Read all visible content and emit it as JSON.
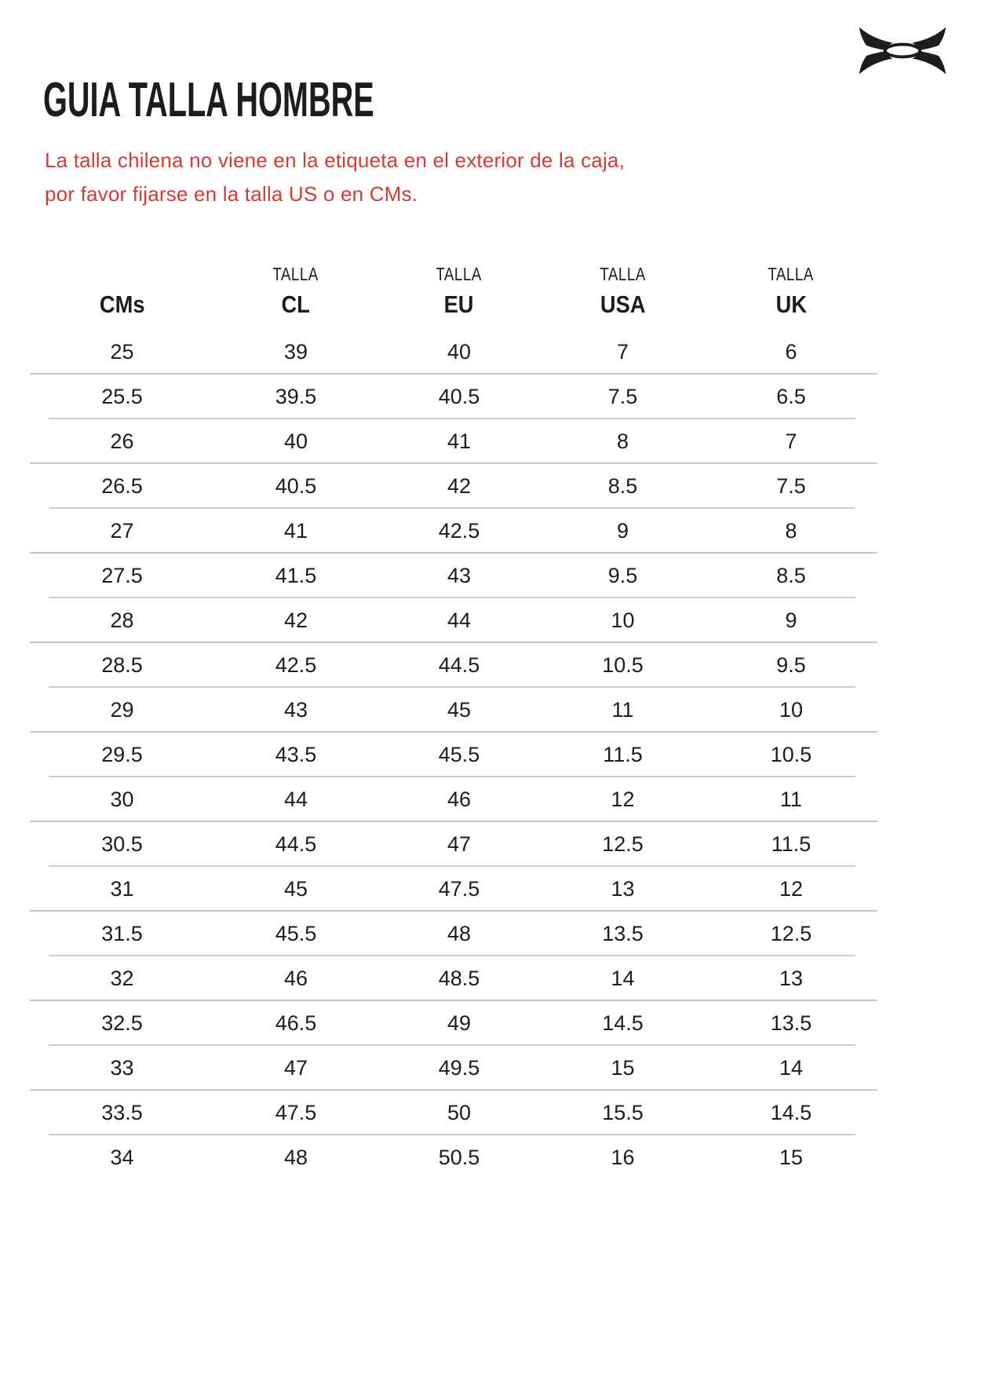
{
  "brand": {
    "logo_icon": "under-armour-logo"
  },
  "page": {
    "title": "GUIA TALLA HOMBRE"
  },
  "note": {
    "line1": "La talla chilena no viene en la etiqueta en el exterior de la caja,",
    "line2": "por favor fijarse en la talla US o en CMs."
  },
  "table": {
    "columns": [
      {
        "talla": "",
        "code": "CMs"
      },
      {
        "talla": "TALLA",
        "code": "CL"
      },
      {
        "talla": "TALLA",
        "code": "EU"
      },
      {
        "talla": "TALLA",
        "code": "USA"
      },
      {
        "talla": "TALLA",
        "code": "UK"
      }
    ],
    "rows": [
      [
        "25",
        "39",
        "40",
        "7",
        "6"
      ],
      [
        "25.5",
        "39.5",
        "40.5",
        "7.5",
        "6.5"
      ],
      [
        "26",
        "40",
        "41",
        "8",
        "7"
      ],
      [
        "26.5",
        "40.5",
        "42",
        "8.5",
        "7.5"
      ],
      [
        "27",
        "41",
        "42.5",
        "9",
        "8"
      ],
      [
        "27.5",
        "41.5",
        "43",
        "9.5",
        "8.5"
      ],
      [
        "28",
        "42",
        "44",
        "10",
        "9"
      ],
      [
        "28.5",
        "42.5",
        "44.5",
        "10.5",
        "9.5"
      ],
      [
        "29",
        "43",
        "45",
        "11",
        "10"
      ],
      [
        "29.5",
        "43.5",
        "45.5",
        "11.5",
        "10.5"
      ],
      [
        "30",
        "44",
        "46",
        "12",
        "11"
      ],
      [
        "30.5",
        "44.5",
        "47",
        "12.5",
        "11.5"
      ],
      [
        "31",
        "45",
        "47.5",
        "13",
        "12"
      ],
      [
        "31.5",
        "45.5",
        "48",
        "13.5",
        "12.5"
      ],
      [
        "32",
        "46",
        "48.5",
        "14",
        "13"
      ],
      [
        "32.5",
        "46.5",
        "49",
        "14.5",
        "13.5"
      ],
      [
        "33",
        "47",
        "49.5",
        "15",
        "14"
      ],
      [
        "33.5",
        "47.5",
        "50",
        "15.5",
        "14.5"
      ],
      [
        "34",
        "48",
        "50.5",
        "16",
        "15"
      ]
    ]
  },
  "colors": {
    "accent_red": "#d63b32",
    "text": "#1d1d1d",
    "separator": "#c7c7c7",
    "logo_black": "#1d1d1b"
  }
}
